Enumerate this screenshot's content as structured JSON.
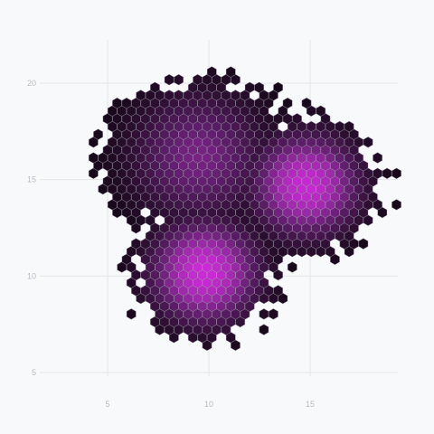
{
  "chart_data": {
    "type": "heatmap",
    "subtype": "hexbin-density",
    "title": "",
    "xlabel": "",
    "ylabel": "",
    "xlim": [
      3,
      20
    ],
    "ylim": [
      4,
      22
    ],
    "x_ticks": [
      5,
      10,
      15
    ],
    "y_ticks": [
      5,
      10,
      15,
      20
    ],
    "x_tick_labels": [
      "5",
      "10",
      "15"
    ],
    "y_tick_labels": [
      "5",
      "10",
      "15",
      "20"
    ],
    "grid": true,
    "legend": "none",
    "colormap": [
      "#0d060f",
      "#2e0f33",
      "#5c1e68",
      "#9a2aa6",
      "#cd2ad8"
    ],
    "hex_size": 0.27,
    "density_centers": [
      {
        "x": 9.8,
        "y": 10.2,
        "peak": 1.0
      },
      {
        "x": 14.8,
        "y": 14.7,
        "peak": 0.97
      },
      {
        "x": 9.5,
        "y": 16.2,
        "peak": 0.62
      }
    ],
    "extent_x": [
      4.3,
      19.3
    ],
    "extent_y": [
      5.6,
      21.1
    ]
  }
}
